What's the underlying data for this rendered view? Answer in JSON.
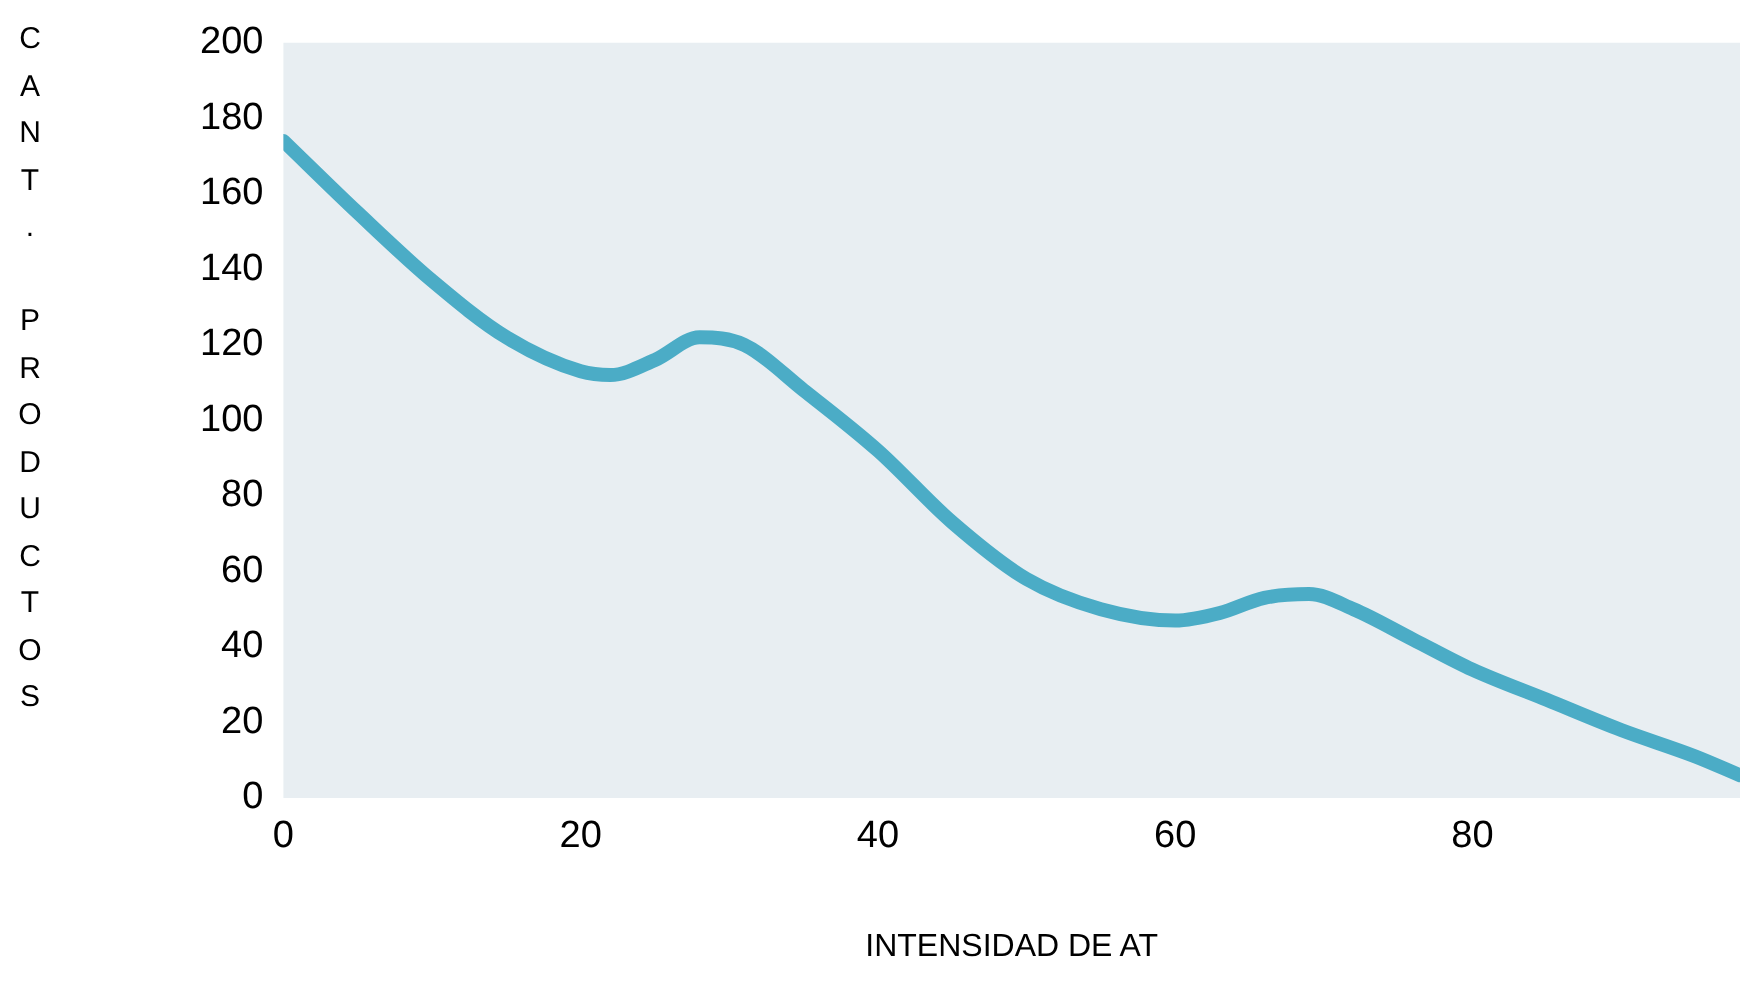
{
  "chart_data": {
    "type": "line",
    "xlabel": "INTENSIDAD DE AT",
    "ylabel": "CANT. PRODUCTOS",
    "xlim": [
      0,
      98
    ],
    "xticks": [
      0,
      20,
      40,
      60,
      80
    ],
    "ylim": [
      0,
      200
    ],
    "yticks": [
      0,
      20,
      40,
      60,
      80,
      100,
      120,
      140,
      160,
      180,
      200
    ],
    "grid": false,
    "legend": false,
    "marker": "none",
    "line_style": "solid",
    "series": [
      {
        "color": "#4bacc6",
        "x": [
          0,
          5,
          10,
          15,
          20,
          22,
          25,
          28,
          31,
          35,
          40,
          45,
          50,
          55,
          60,
          63,
          66,
          69,
          72,
          76,
          80,
          85,
          90,
          95,
          98
        ],
        "values": [
          174,
          155,
          137,
          122,
          113,
          112,
          116,
          122,
          120,
          108,
          92,
          73,
          58,
          50,
          47,
          49,
          53,
          54,
          50,
          42,
          34,
          26,
          18,
          11,
          6
        ]
      }
    ]
  }
}
